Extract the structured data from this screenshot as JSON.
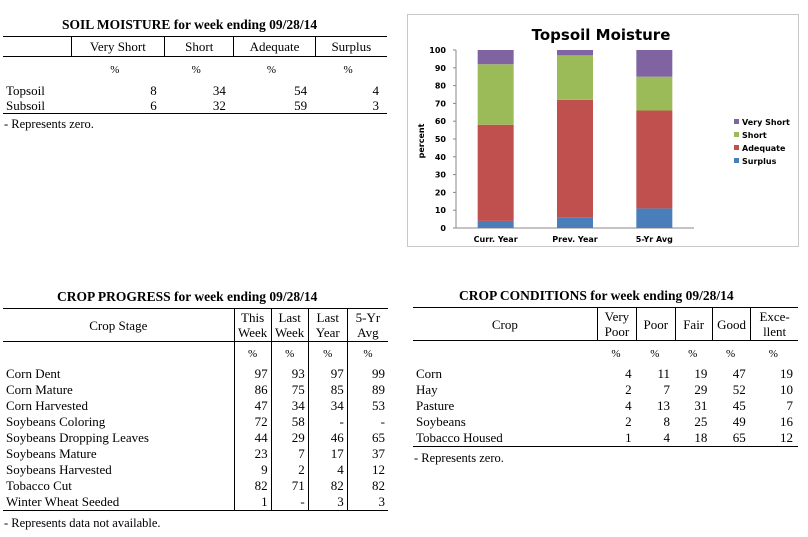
{
  "soil": {
    "title": "SOIL MOISTURE for week ending 09/28/14",
    "headers": [
      "",
      "Very Short",
      "Short",
      "Adequate",
      "Surplus"
    ],
    "unit": "%",
    "rows": [
      {
        "label": "Topsoil",
        "values": [
          "8",
          "34",
          "54",
          "4"
        ]
      },
      {
        "label": "Subsoil",
        "values": [
          "6",
          "32",
          "59",
          "3"
        ]
      }
    ],
    "note": "- Represents zero."
  },
  "progress": {
    "title": "CROP PROGRESS for week ending 09/28/14",
    "headers": {
      "stage": "Crop Stage",
      "this_1": "This",
      "this_2": "Week",
      "last_1": "Last",
      "last_2": "Week",
      "lasty_1": "Last",
      "lasty_2": "Year",
      "avg_1": "5-Yr",
      "avg_2": "Avg"
    },
    "unit": "%",
    "rows": [
      {
        "label": "Corn Dent",
        "values": [
          "97",
          "93",
          "97",
          "99"
        ]
      },
      {
        "label": "Corn Mature",
        "values": [
          "86",
          "75",
          "85",
          "89"
        ]
      },
      {
        "label": "Corn Harvested",
        "values": [
          "47",
          "34",
          "34",
          "53"
        ]
      },
      {
        "label": "Soybeans Coloring",
        "values": [
          "72",
          "58",
          "-",
          "-"
        ]
      },
      {
        "label": "Soybeans Dropping Leaves",
        "values": [
          "44",
          "29",
          "46",
          "65"
        ]
      },
      {
        "label": "Soybeans Mature",
        "values": [
          "23",
          "7",
          "17",
          "37"
        ]
      },
      {
        "label": "Soybeans Harvested",
        "values": [
          "9",
          "2",
          "4",
          "12"
        ]
      },
      {
        "label": "Tobacco Cut",
        "values": [
          "82",
          "71",
          "82",
          "82"
        ]
      },
      {
        "label": "Winter Wheat Seeded",
        "values": [
          "1",
          "-",
          "3",
          "3"
        ]
      }
    ],
    "note": "- Represents data not available."
  },
  "conditions": {
    "title": "CROP CONDITIONS for week ending 09/28/14",
    "headers": {
      "crop": "Crop",
      "vp_1": "Very",
      "vp_2": "Poor",
      "poor": "Poor",
      "fair": "Fair",
      "good": "Good",
      "exc_1": "Exce-",
      "exc_2": "llent"
    },
    "unit": "%",
    "rows": [
      {
        "label": "Corn",
        "values": [
          "4",
          "11",
          "19",
          "47",
          "19"
        ]
      },
      {
        "label": "Hay",
        "values": [
          "2",
          "7",
          "29",
          "52",
          "10"
        ]
      },
      {
        "label": "Pasture",
        "values": [
          "4",
          "13",
          "31",
          "45",
          "7"
        ]
      },
      {
        "label": "Soybeans",
        "values": [
          "2",
          "8",
          "25",
          "49",
          "16"
        ]
      },
      {
        "label": "Tobacco Housed",
        "values": [
          "1",
          "4",
          "18",
          "65",
          "12"
        ]
      }
    ],
    "note": "- Represents zero."
  },
  "chart_data": {
    "type": "bar",
    "stacked": true,
    "title": "Topsoil Moisture",
    "ylabel": "percent",
    "ylim": [
      0,
      100
    ],
    "yticks": [
      "0",
      "10",
      "20",
      "30",
      "40",
      "50",
      "60",
      "70",
      "80",
      "90",
      "100"
    ],
    "categories": [
      "Curr. Year",
      "Prev. Year",
      "5-Yr Avg"
    ],
    "legend_position": "right",
    "series": [
      {
        "name": "Surplus",
        "color": "#4a7ebb",
        "values": [
          4,
          6,
          11
        ]
      },
      {
        "name": "Adequate",
        "color": "#c0504d",
        "values": [
          54,
          66,
          55
        ]
      },
      {
        "name": "Short",
        "color": "#9bbb59",
        "values": [
          34,
          25,
          19
        ]
      },
      {
        "name": "Very Short",
        "color": "#8064a2",
        "values": [
          8,
          3,
          15
        ]
      }
    ],
    "legend_order": [
      "Very Short",
      "Short",
      "Adequate",
      "Surplus"
    ]
  }
}
